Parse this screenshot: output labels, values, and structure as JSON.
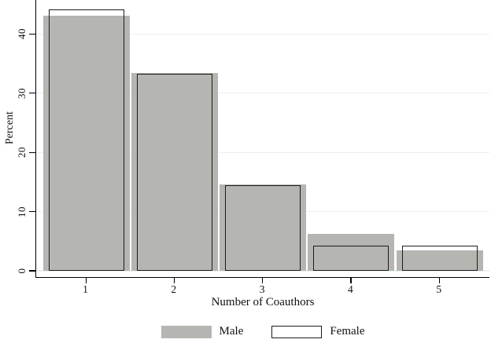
{
  "chart_data": {
    "type": "bar",
    "subtype": "overlaid-histogram",
    "title": "",
    "xlabel": "Number of Coauthors",
    "ylabel": "Percent",
    "categories": [
      "1",
      "2",
      "3",
      "4",
      "5"
    ],
    "series": [
      {
        "name": "Male",
        "values": [
          43.1,
          33.4,
          14.6,
          6.2,
          3.5
        ],
        "fill": "#b5b5b1",
        "border": "none"
      },
      {
        "name": "Female",
        "values": [
          44.2,
          33.3,
          14.5,
          4.3,
          4.3
        ],
        "fill": "#ffffff",
        "border": "#1c1c1c"
      }
    ],
    "yticks": [
      0,
      10,
      20,
      30,
      40
    ],
    "ylim": [
      0,
      46
    ],
    "grid": "horizontal",
    "gridline_color": "#e9f2f0",
    "axis_color": "#000000",
    "legend_position": "bottom-center"
  }
}
